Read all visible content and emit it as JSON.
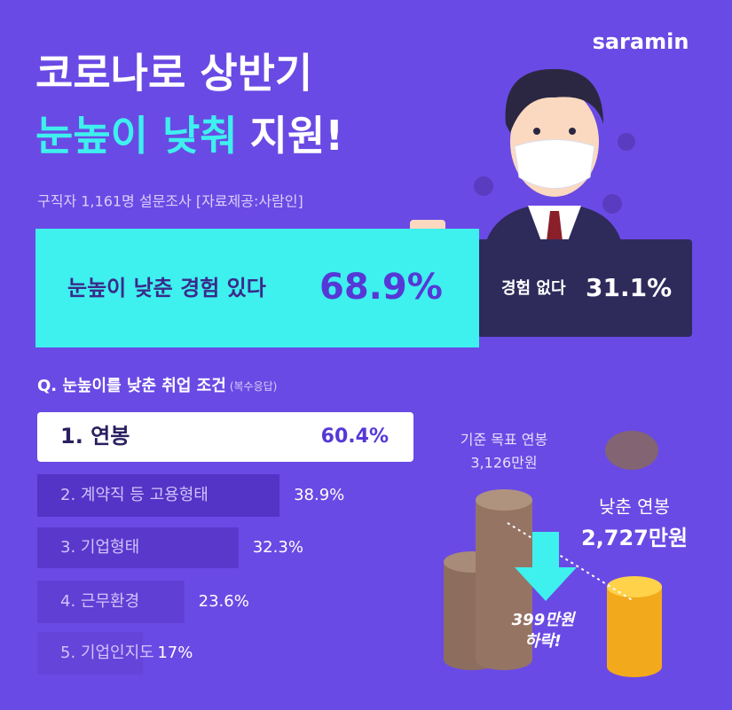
{
  "brand": "saramin",
  "title": {
    "line1": "코로나로 상반기",
    "line2_highlight": "눈높이 낮춰",
    "line2_rest": "지원!"
  },
  "subtitle": "구직자 1,161명 설문조사 [자료제공:사람인]",
  "experience": {
    "yes_label": "눈높이 낮춘 경험 있다",
    "yes_value": "68.9%",
    "no_label": "경험 없다",
    "no_value": "31.1%"
  },
  "question": {
    "text": "Q. 눈높이를 낮춘 취업 조건",
    "note": "(복수응답)"
  },
  "conditions": [
    {
      "label": "1. 연봉",
      "value": 60.4,
      "value_label": "60.4%"
    },
    {
      "label": "2. 계약직 등 고용형태",
      "value": 38.9,
      "value_label": "38.9%"
    },
    {
      "label": "3. 기업형태",
      "value": 32.3,
      "value_label": "32.3%"
    },
    {
      "label": "4. 근무환경",
      "value": 23.6,
      "value_label": "23.6%"
    },
    {
      "label": "5. 기업인지도",
      "value": 17,
      "value_label": "17%"
    }
  ],
  "salary": {
    "target_label": "기준 목표 연봉",
    "target_value": "3,126만원",
    "lowered_label": "낮춘 연봉",
    "lowered_value": "2,727만원",
    "drop_value": "399만원",
    "drop_note": "하락!"
  }
}
